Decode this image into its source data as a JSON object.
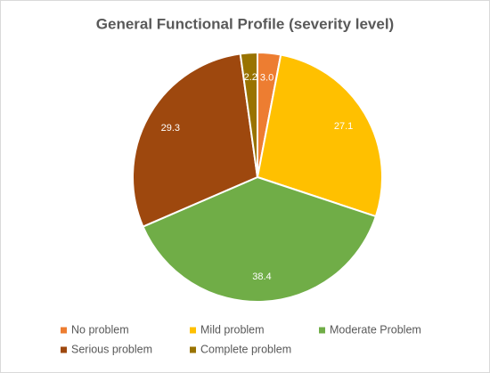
{
  "chart_data": {
    "type": "pie",
    "title": "General Functional Profile (severity level)",
    "categories": [
      "No problem",
      "Mild problem",
      "Moderate Problem",
      "Serious problem",
      "Complete problem"
    ],
    "values": [
      3.0,
      27.1,
      38.4,
      29.3,
      2.2
    ],
    "value_labels": [
      "3.0",
      "27.1",
      "38.4",
      "29.3",
      "2.2"
    ],
    "colors": [
      "#ED7D31",
      "#FFC000",
      "#70AD47",
      "#9E480E",
      "#997300"
    ],
    "legend": "bottom"
  }
}
